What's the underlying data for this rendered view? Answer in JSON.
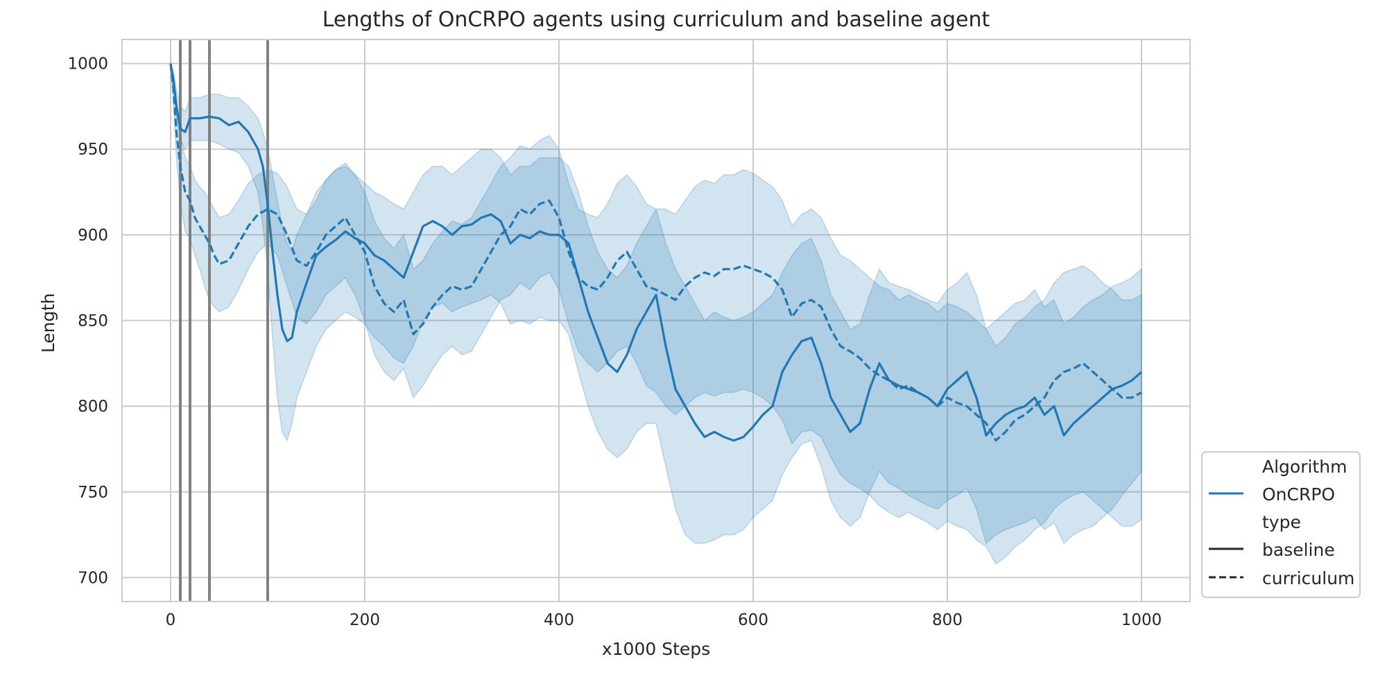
{
  "chart_data": {
    "type": "line",
    "title": "Lengths of OnCRPO agents using curriculum and baseline agent",
    "xlabel": "x1000 Steps",
    "ylabel": "Length",
    "xlim": [
      -50,
      1050
    ],
    "ylim": [
      686,
      1014
    ],
    "xticks": [
      0,
      200,
      400,
      600,
      800,
      1000
    ],
    "yticks": [
      700,
      750,
      800,
      850,
      900,
      950,
      1000
    ],
    "grid": true,
    "legend_position": "lower-right outside",
    "colors": {
      "line": "#1f77b4",
      "band": "#1f77b4",
      "vline": "#808080",
      "grid": "#cccccc",
      "frame": "#cccccc",
      "legend_key": "#262626"
    },
    "vlines": [
      10,
      20,
      40,
      100
    ],
    "legend": {
      "algorithm_title": "Algorithm",
      "algorithm_entry": "OnCRPO",
      "type_title": "type",
      "type_entries": [
        "baseline",
        "curriculum"
      ]
    },
    "series": [
      {
        "name": "baseline",
        "style": "solid",
        "x": [
          0,
          3,
          6,
          10,
          15,
          20,
          30,
          40,
          50,
          60,
          70,
          80,
          90,
          95,
          100,
          105,
          110,
          115,
          120,
          125,
          130,
          140,
          150,
          160,
          170,
          180,
          190,
          200,
          210,
          220,
          230,
          240,
          250,
          260,
          270,
          280,
          290,
          300,
          310,
          320,
          330,
          340,
          350,
          360,
          370,
          380,
          390,
          400,
          410,
          420,
          430,
          440,
          450,
          460,
          470,
          480,
          490,
          500,
          510,
          520,
          530,
          540,
          550,
          560,
          570,
          580,
          590,
          600,
          610,
          620,
          630,
          640,
          650,
          660,
          670,
          680,
          690,
          700,
          710,
          720,
          730,
          740,
          750,
          760,
          770,
          780,
          790,
          800,
          810,
          820,
          830,
          840,
          850,
          860,
          870,
          880,
          890,
          900,
          910,
          920,
          930,
          940,
          950,
          960,
          970,
          980,
          990,
          1000
        ],
        "values": [
          1000,
          990,
          975,
          962,
          960,
          968,
          968,
          969,
          968,
          964,
          966,
          960,
          950,
          940,
          918,
          890,
          865,
          845,
          838,
          840,
          855,
          872,
          888,
          893,
          897,
          902,
          898,
          895,
          888,
          885,
          880,
          875,
          890,
          905,
          908,
          905,
          900,
          905,
          906,
          910,
          912,
          908,
          895,
          900,
          898,
          902,
          900,
          900,
          895,
          875,
          855,
          840,
          825,
          820,
          830,
          845,
          855,
          865,
          835,
          810,
          800,
          790,
          782,
          785,
          782,
          780,
          782,
          788,
          795,
          800,
          820,
          830,
          838,
          840,
          825,
          805,
          795,
          785,
          790,
          810,
          825,
          815,
          812,
          810,
          808,
          805,
          800,
          810,
          815,
          820,
          805,
          783,
          790,
          795,
          798,
          800,
          805,
          795,
          800,
          783,
          790,
          795,
          800,
          805,
          810,
          812,
          815,
          820
        ],
        "ci_lower": [
          998,
          985,
          968,
          955,
          950,
          955,
          955,
          955,
          953,
          950,
          948,
          940,
          925,
          905,
          880,
          840,
          805,
          785,
          780,
          790,
          805,
          820,
          835,
          845,
          850,
          855,
          852,
          848,
          840,
          835,
          828,
          825,
          835,
          850,
          858,
          860,
          855,
          858,
          860,
          862,
          865,
          860,
          848,
          850,
          848,
          852,
          850,
          850,
          842,
          820,
          800,
          785,
          775,
          770,
          775,
          785,
          790,
          790,
          765,
          740,
          725,
          720,
          720,
          722,
          725,
          725,
          728,
          735,
          740,
          745,
          760,
          770,
          778,
          780,
          765,
          745,
          735,
          730,
          735,
          750,
          762,
          755,
          752,
          748,
          745,
          742,
          740,
          745,
          748,
          752,
          740,
          720,
          725,
          728,
          730,
          732,
          735,
          728,
          732,
          720,
          725,
          728,
          730,
          735,
          740,
          748,
          755,
          762
        ],
        "ci_upper": [
          1000,
          995,
          985,
          975,
          972,
          980,
          980,
          982,
          982,
          980,
          980,
          975,
          968,
          960,
          950,
          935,
          920,
          905,
          895,
          890,
          900,
          912,
          925,
          932,
          938,
          940,
          935,
          930,
          925,
          922,
          918,
          915,
          925,
          935,
          940,
          940,
          935,
          940,
          945,
          950,
          950,
          945,
          935,
          940,
          940,
          945,
          945,
          945,
          940,
          925,
          905,
          890,
          880,
          875,
          882,
          895,
          905,
          915,
          895,
          880,
          870,
          860,
          850,
          855,
          852,
          850,
          852,
          855,
          860,
          865,
          878,
          888,
          895,
          898,
          885,
          865,
          855,
          845,
          848,
          865,
          880,
          872,
          870,
          868,
          865,
          862,
          860,
          868,
          872,
          878,
          865,
          845,
          850,
          855,
          860,
          862,
          868,
          858,
          862,
          848,
          852,
          858,
          862,
          865,
          870,
          872,
          875,
          880
        ]
      },
      {
        "name": "curriculum",
        "style": "dashed",
        "x": [
          0,
          3,
          6,
          10,
          15,
          20,
          25,
          30,
          35,
          40,
          45,
          50,
          60,
          70,
          80,
          90,
          100,
          110,
          120,
          130,
          140,
          150,
          160,
          170,
          180,
          190,
          200,
          210,
          220,
          230,
          240,
          250,
          260,
          270,
          280,
          290,
          300,
          310,
          320,
          330,
          340,
          350,
          360,
          370,
          380,
          390,
          400,
          410,
          420,
          430,
          440,
          450,
          460,
          470,
          480,
          490,
          500,
          510,
          520,
          530,
          540,
          550,
          560,
          570,
          580,
          590,
          600,
          610,
          620,
          630,
          640,
          650,
          660,
          670,
          680,
          690,
          700,
          710,
          720,
          730,
          740,
          750,
          760,
          770,
          780,
          790,
          800,
          810,
          820,
          830,
          840,
          850,
          860,
          870,
          880,
          890,
          900,
          910,
          920,
          930,
          940,
          950,
          960,
          970,
          980,
          990,
          1000
        ],
        "values": [
          1000,
          985,
          960,
          940,
          925,
          920,
          910,
          905,
          900,
          895,
          888,
          883,
          885,
          895,
          905,
          912,
          915,
          912,
          900,
          885,
          882,
          890,
          900,
          905,
          910,
          900,
          890,
          870,
          860,
          855,
          862,
          842,
          848,
          858,
          865,
          870,
          868,
          870,
          880,
          890,
          900,
          905,
          915,
          912,
          918,
          920,
          910,
          890,
          875,
          870,
          868,
          875,
          885,
          890,
          880,
          870,
          868,
          865,
          862,
          870,
          875,
          878,
          876,
          880,
          880,
          882,
          880,
          878,
          875,
          868,
          852,
          860,
          862,
          858,
          845,
          835,
          832,
          828,
          822,
          818,
          815,
          810,
          812,
          808,
          805,
          800,
          805,
          802,
          800,
          795,
          790,
          780,
          785,
          792,
          795,
          800,
          805,
          815,
          820,
          822,
          825,
          820,
          815,
          810,
          805,
          805,
          808
        ],
        "ci_lower": [
          998,
          975,
          945,
          920,
          902,
          898,
          888,
          880,
          870,
          862,
          858,
          855,
          858,
          868,
          880,
          890,
          895,
          888,
          870,
          852,
          848,
          855,
          865,
          870,
          875,
          865,
          850,
          830,
          820,
          815,
          822,
          805,
          812,
          822,
          830,
          835,
          830,
          832,
          842,
          852,
          862,
          865,
          872,
          868,
          875,
          878,
          868,
          848,
          832,
          825,
          820,
          825,
          832,
          835,
          825,
          812,
          808,
          800,
          795,
          800,
          805,
          808,
          806,
          808,
          808,
          810,
          808,
          805,
          800,
          792,
          778,
          785,
          786,
          782,
          770,
          760,
          755,
          752,
          748,
          742,
          738,
          735,
          738,
          735,
          732,
          728,
          733,
          730,
          728,
          722,
          718,
          708,
          712,
          718,
          722,
          728,
          732,
          740,
          745,
          748,
          750,
          745,
          740,
          735,
          730,
          730,
          734
        ],
        "ci_upper": [
          1000,
          992,
          975,
          958,
          945,
          940,
          932,
          928,
          925,
          920,
          915,
          910,
          912,
          920,
          930,
          935,
          938,
          936,
          928,
          915,
          912,
          920,
          932,
          938,
          942,
          935,
          925,
          908,
          898,
          892,
          900,
          880,
          885,
          895,
          902,
          908,
          906,
          910,
          920,
          930,
          940,
          945,
          952,
          950,
          955,
          958,
          950,
          930,
          915,
          912,
          910,
          918,
          930,
          935,
          928,
          918,
          915,
          915,
          912,
          920,
          928,
          932,
          930,
          935,
          935,
          938,
          936,
          932,
          928,
          920,
          905,
          912,
          915,
          910,
          898,
          888,
          885,
          880,
          875,
          870,
          868,
          862,
          865,
          862,
          860,
          855,
          860,
          858,
          855,
          850,
          845,
          835,
          840,
          848,
          852,
          858,
          862,
          872,
          878,
          880,
          882,
          878,
          872,
          868,
          862,
          862,
          865
        ]
      }
    ]
  }
}
